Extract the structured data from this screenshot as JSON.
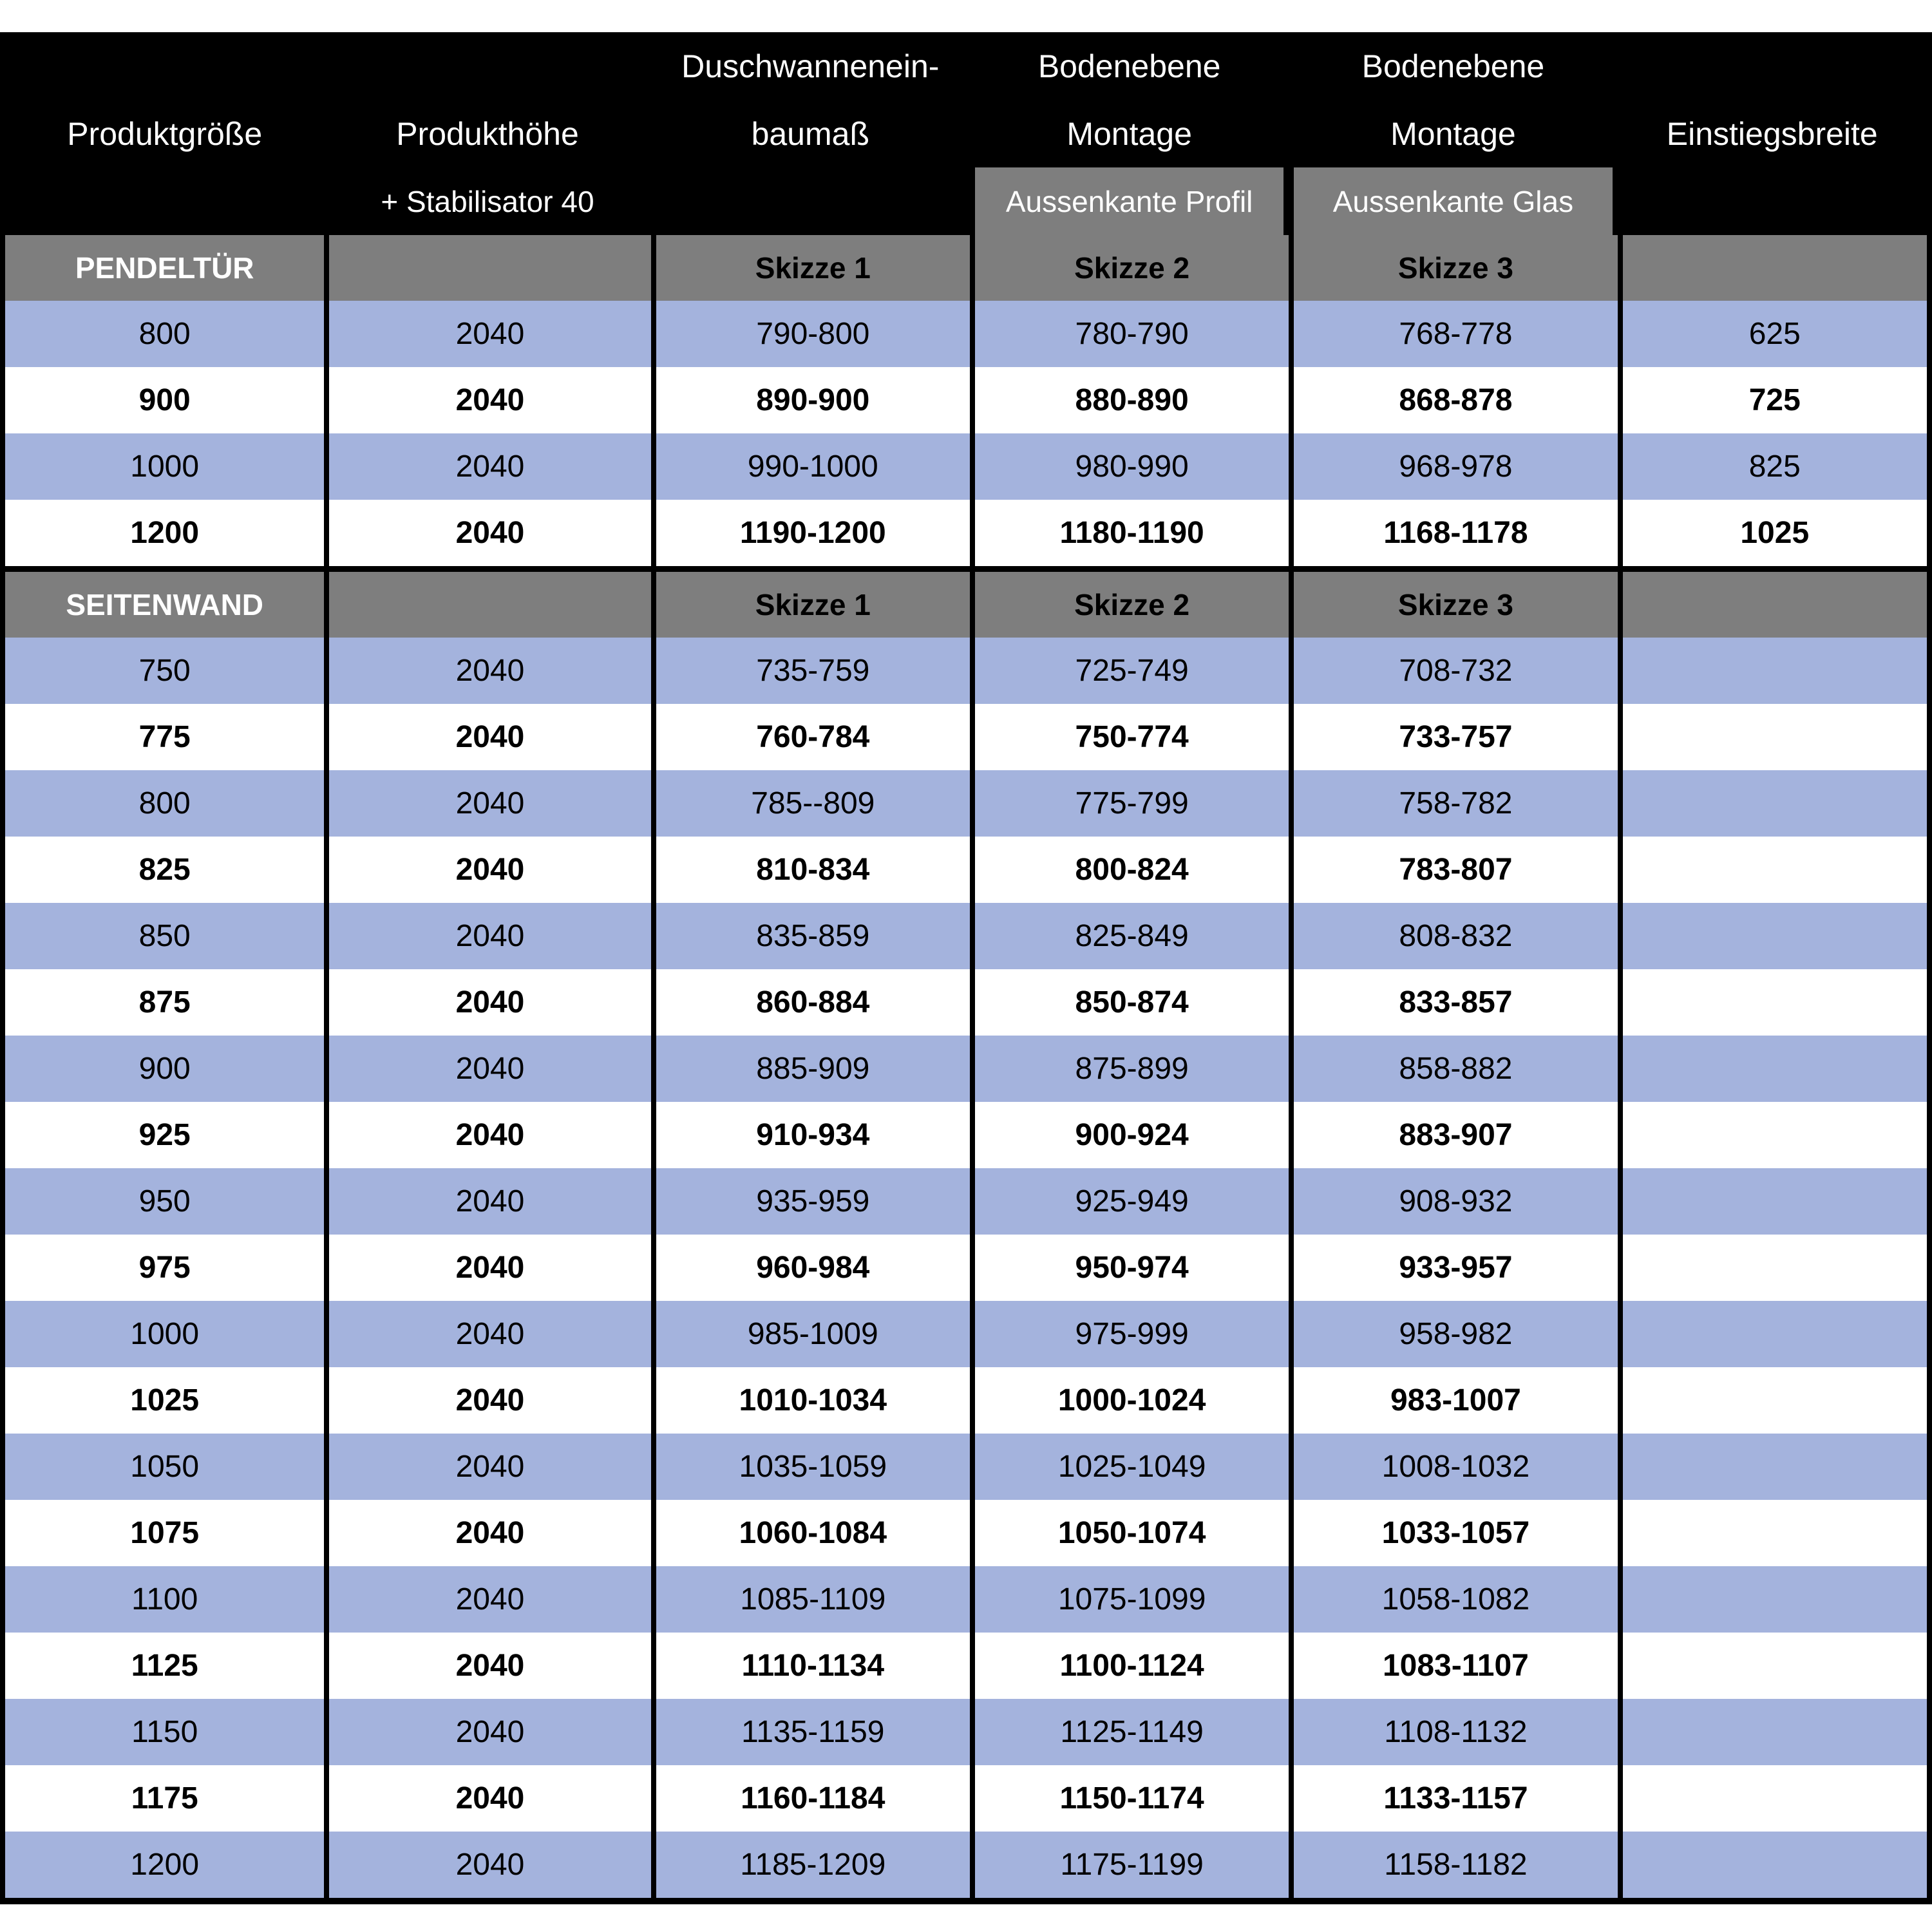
{
  "colors": {
    "header_bg": "#000000",
    "section_gray": "#7e7e7e",
    "row_blue": "#a4b3dd",
    "row_white": "#ffffff",
    "border": "#000000",
    "header_text": "#ffffff",
    "data_text": "#000000"
  },
  "header": {
    "col1": {
      "line2": "Produktgröße"
    },
    "col2": {
      "line2": "Produkthöhe",
      "line3": "+ Stabilisator 40"
    },
    "col3": {
      "line1": "Duschwannenein-",
      "line2": "baumaß"
    },
    "col4": {
      "line1": "Bodenebene",
      "line2": "Montage",
      "line3": "Aussenkante Profil"
    },
    "col5": {
      "line1": "Bodenebene",
      "line2": "Montage",
      "line3": "Aussenkante Glas"
    },
    "col6": {
      "line2": "Einstiegsbreite"
    }
  },
  "sections": [
    {
      "label": "PENDELTÜR",
      "skizze": [
        "Skizze 1",
        "Skizze 2",
        "Skizze 3"
      ],
      "rows": [
        {
          "shade": "blue",
          "cells": [
            "800",
            "2040",
            "790-800",
            "780-790",
            "768-778",
            "625"
          ]
        },
        {
          "shade": "white",
          "cells": [
            "900",
            "2040",
            "890-900",
            "880-890",
            "868-878",
            "725"
          ]
        },
        {
          "shade": "blue",
          "cells": [
            "1000",
            "2040",
            "990-1000",
            "980-990",
            "968-978",
            "825"
          ]
        },
        {
          "shade": "white",
          "cells": [
            "1200",
            "2040",
            "1190-1200",
            "1180-1190",
            "1168-1178",
            "1025"
          ]
        }
      ]
    },
    {
      "label": "SEITENWAND",
      "skizze": [
        "Skizze 1",
        "Skizze 2",
        "Skizze 3"
      ],
      "rows": [
        {
          "shade": "blue",
          "cells": [
            "750",
            "2040",
            "735-759",
            "725-749",
            "708-732",
            ""
          ]
        },
        {
          "shade": "white",
          "cells": [
            "775",
            "2040",
            "760-784",
            "750-774",
            "733-757",
            ""
          ]
        },
        {
          "shade": "blue",
          "cells": [
            "800",
            "2040",
            "785--809",
            "775-799",
            "758-782",
            ""
          ]
        },
        {
          "shade": "white",
          "cells": [
            "825",
            "2040",
            "810-834",
            "800-824",
            "783-807",
            ""
          ]
        },
        {
          "shade": "blue",
          "cells": [
            "850",
            "2040",
            "835-859",
            "825-849",
            "808-832",
            ""
          ]
        },
        {
          "shade": "white",
          "cells": [
            "875",
            "2040",
            "860-884",
            "850-874",
            "833-857",
            ""
          ]
        },
        {
          "shade": "blue",
          "cells": [
            "900",
            "2040",
            "885-909",
            "875-899",
            "858-882",
            ""
          ]
        },
        {
          "shade": "white",
          "cells": [
            "925",
            "2040",
            "910-934",
            "900-924",
            "883-907",
            ""
          ]
        },
        {
          "shade": "blue",
          "cells": [
            "950",
            "2040",
            "935-959",
            "925-949",
            "908-932",
            ""
          ]
        },
        {
          "shade": "white",
          "cells": [
            "975",
            "2040",
            "960-984",
            "950-974",
            "933-957",
            ""
          ]
        },
        {
          "shade": "blue",
          "cells": [
            "1000",
            "2040",
            "985-1009",
            "975-999",
            "958-982",
            ""
          ]
        },
        {
          "shade": "white",
          "cells": [
            "1025",
            "2040",
            "1010-1034",
            "1000-1024",
            "983-1007",
            ""
          ]
        },
        {
          "shade": "blue",
          "cells": [
            "1050",
            "2040",
            "1035-1059",
            "1025-1049",
            "1008-1032",
            ""
          ]
        },
        {
          "shade": "white",
          "cells": [
            "1075",
            "2040",
            "1060-1084",
            "1050-1074",
            "1033-1057",
            ""
          ]
        },
        {
          "shade": "blue",
          "cells": [
            "1100",
            "2040",
            "1085-1109",
            "1075-1099",
            "1058-1082",
            ""
          ]
        },
        {
          "shade": "white",
          "cells": [
            "1125",
            "2040",
            "1110-1134",
            "1100-1124",
            "1083-1107",
            ""
          ]
        },
        {
          "shade": "blue",
          "cells": [
            "1150",
            "2040",
            "1135-1159",
            "1125-1149",
            "1108-1132",
            ""
          ]
        },
        {
          "shade": "white",
          "cells": [
            "1175",
            "2040",
            "1160-1184",
            "1150-1174",
            "1133-1157",
            ""
          ]
        },
        {
          "shade": "blue",
          "cells": [
            "1200",
            "2040",
            "1185-1209",
            "1175-1199",
            "1158-1182",
            ""
          ]
        }
      ]
    }
  ]
}
